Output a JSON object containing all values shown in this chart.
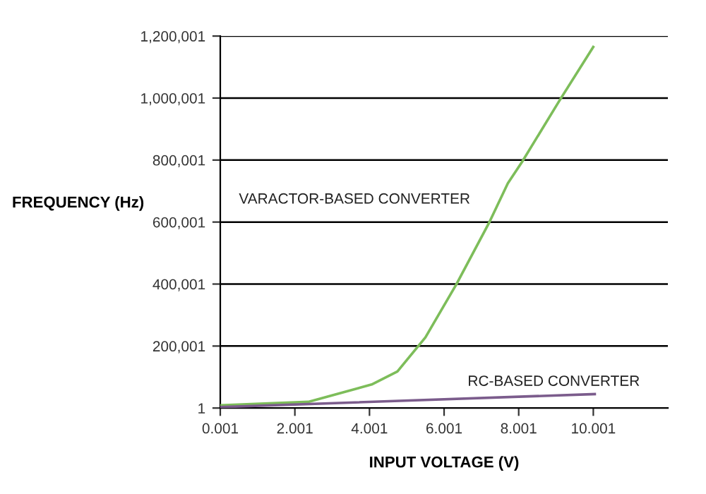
{
  "chart_data": {
    "type": "line",
    "xlabel": "INPUT VOLTAGE (V)",
    "ylabel": "FREQUENCY (Hz)",
    "series": [
      {
        "name": "VARACTOR-BASED CONVERTER",
        "color": "#7dbd5a",
        "x": [
          0.001,
          2.36,
          4.06,
          4.75,
          5.5,
          6.33,
          7.2,
          7.71,
          8.09,
          9.09,
          10.0
        ],
        "values": [
          9000,
          20000,
          76000,
          118000,
          228000,
          399000,
          596000,
          725000,
          794000,
          991000,
          1165000
        ]
      },
      {
        "name": "RC-BASED CONVERTER",
        "color": "#7b5c8c",
        "x": [
          0.001,
          10.04
        ],
        "values": [
          3000,
          45000
        ]
      }
    ],
    "xlim": [
      0.001,
      12.0
    ],
    "xticks": [
      0.001,
      2.001,
      4.001,
      6.001,
      8.001,
      10.001
    ],
    "ylim": [
      1,
      1200001
    ],
    "yticks": [
      1,
      {
        "value": 200001,
        "label": "200,001"
      },
      {
        "value": 400001,
        "label": "400,001"
      },
      {
        "value": 600001,
        "label": "600,001"
      },
      {
        "value": 800001,
        "label": "800,001"
      },
      {
        "value": 1000001,
        "label": "1,000,001"
      },
      {
        "value": 1200001,
        "label": "1,200,001"
      }
    ],
    "grid": "y",
    "marker": "none",
    "line_style": "solid",
    "legend": false
  }
}
